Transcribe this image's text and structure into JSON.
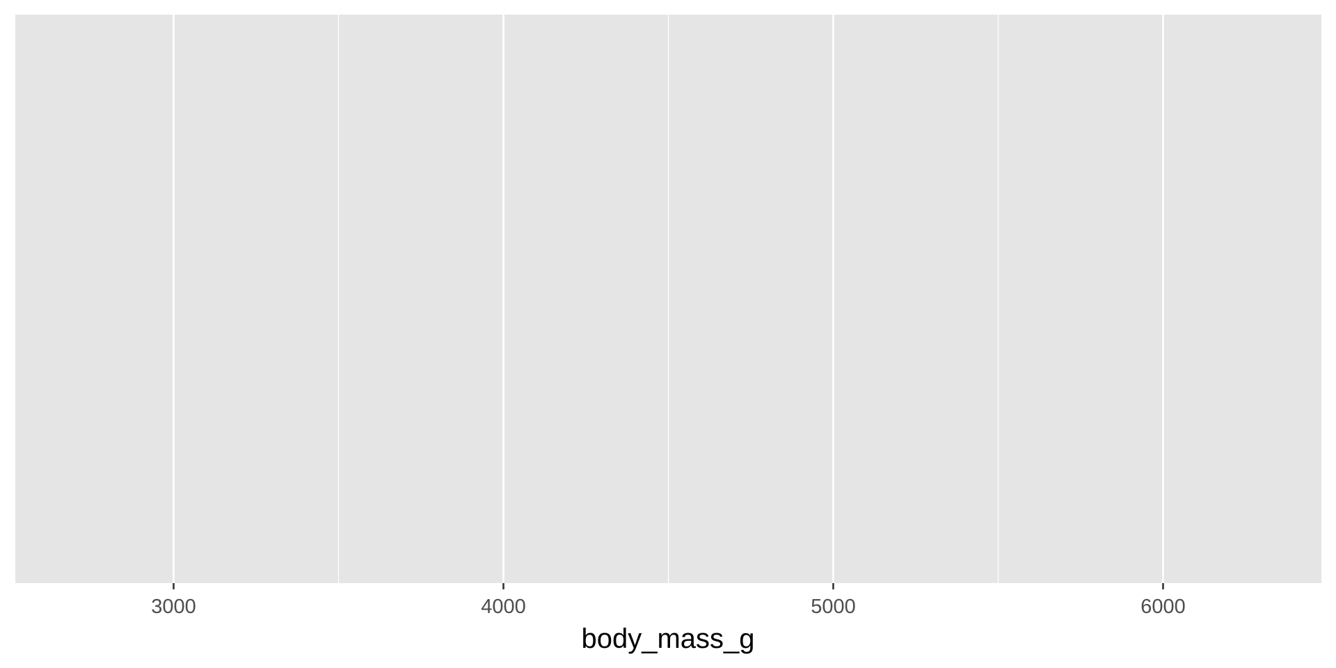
{
  "chart_data": {
    "type": "histogram",
    "title": "",
    "xlabel": "body_mass_g",
    "ylabel": "",
    "xlim": [
      2520,
      6480
    ],
    "x_ticks": [
      3000,
      4000,
      5000,
      6000
    ],
    "x_minor_ticks": [
      3500,
      4500,
      5500
    ],
    "x_tick_labels": [
      "3000",
      "4000",
      "5000",
      "6000"
    ],
    "series": [],
    "grid": true,
    "y_axis_shown": false,
    "colors": {
      "panel": "#e5e5e5",
      "grid": "#ffffff",
      "tick": "#333333",
      "tick_label": "#4d4d4d",
      "axis_title": "#000000"
    }
  }
}
